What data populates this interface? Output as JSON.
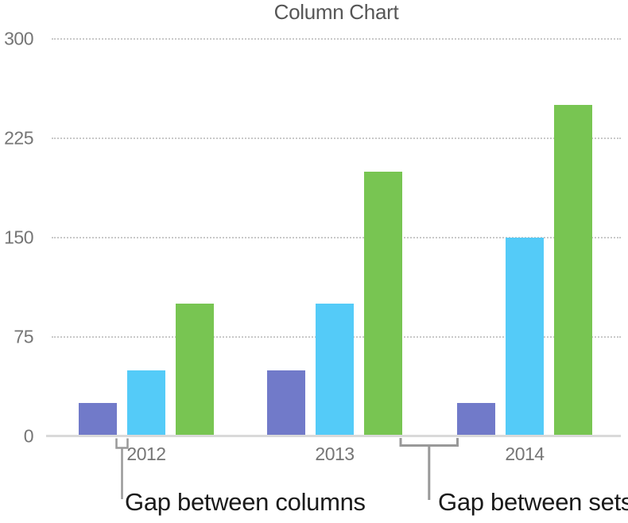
{
  "chart_data": {
    "type": "bar",
    "title": "Column Chart",
    "categories": [
      "2012",
      "2013",
      "2014"
    ],
    "series": [
      {
        "color": "#717AC9",
        "values": [
          25,
          50,
          25
        ]
      },
      {
        "color": "#54CBF8",
        "values": [
          50,
          100,
          150
        ]
      },
      {
        "color": "#78C552",
        "values": [
          100,
          200,
          250
        ]
      }
    ],
    "ylim": [
      0,
      300
    ],
    "yticks": [
      300,
      225,
      150,
      75,
      0
    ],
    "grid": "dotted-horizontal",
    "legend": "none"
  },
  "annotations": {
    "gap_between_columns": "Gap between columns",
    "gap_between_sets": "Gap between sets"
  },
  "colors": {
    "bar_purple": "#717AC9",
    "bar_blue": "#54CBF8",
    "bar_green": "#78C552",
    "gridline": "#C9C9C9",
    "axis_line": "#D9D9D9",
    "bracket": "#999999",
    "tick_label": "#757575",
    "title_text": "#565656",
    "annotation_text": "#1A1A1A"
  }
}
